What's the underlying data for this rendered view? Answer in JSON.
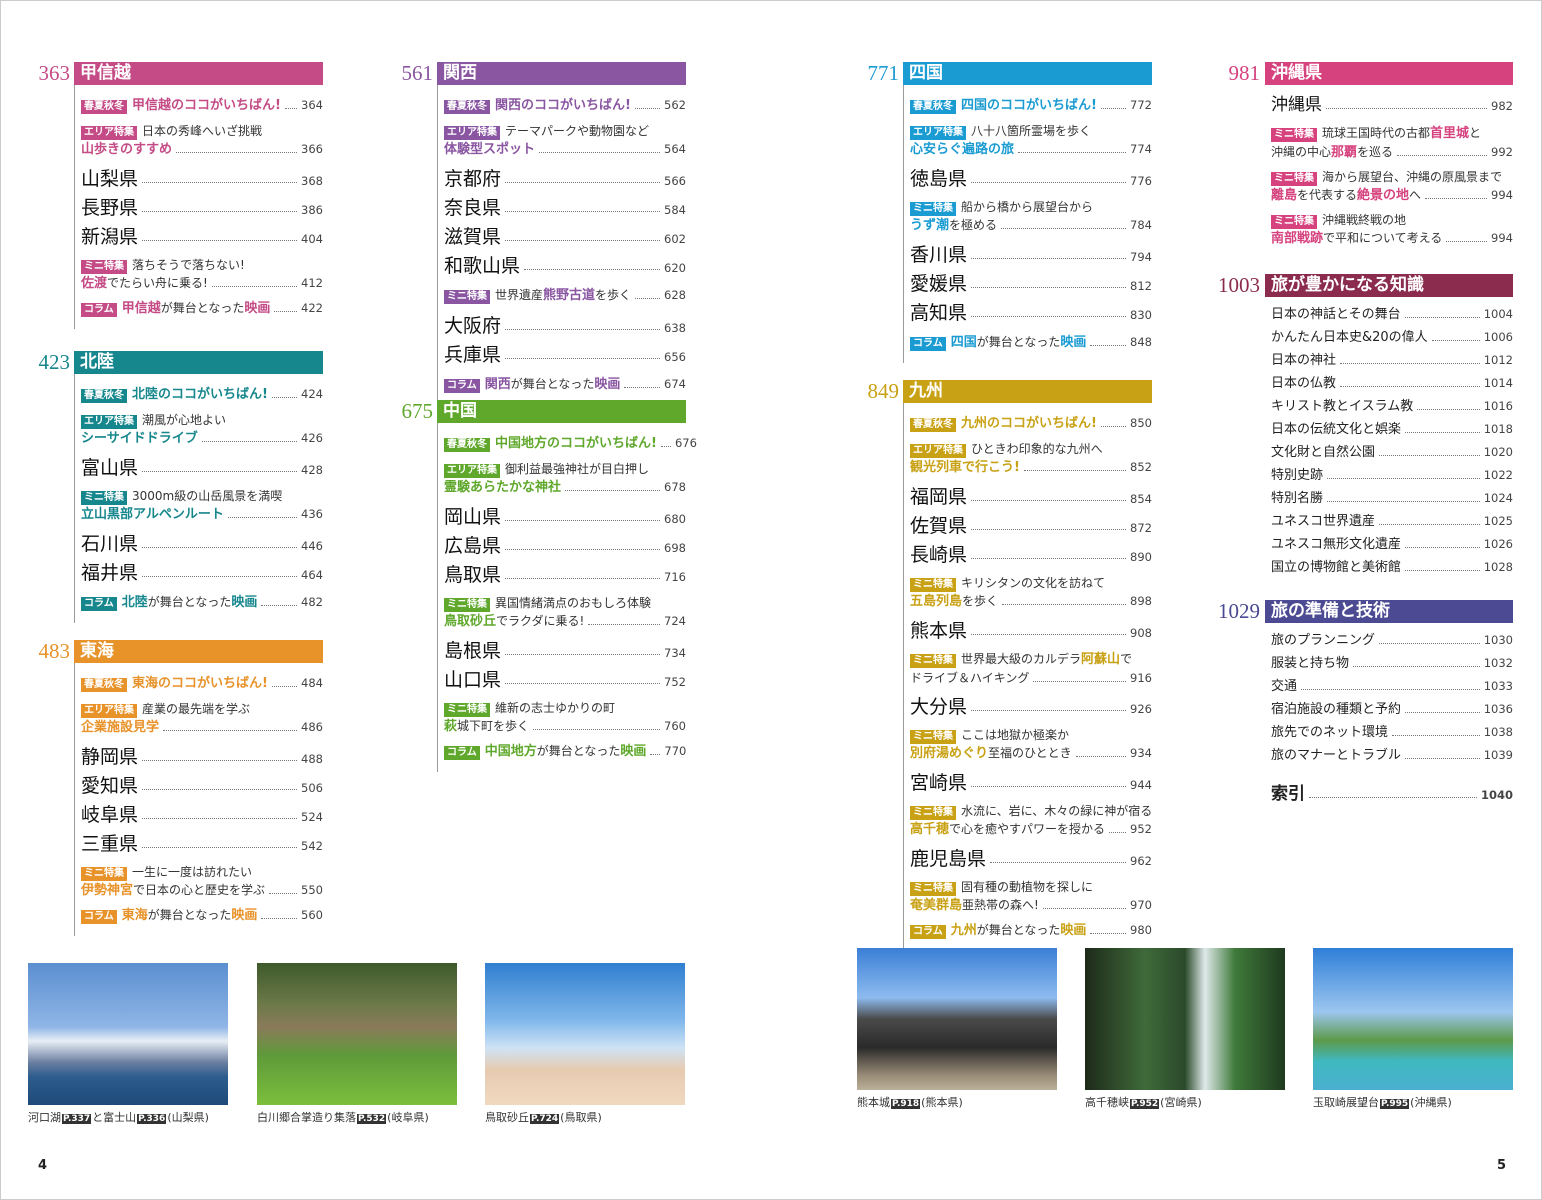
{
  "sections": [
    {
      "num": "363",
      "title": "甲信越",
      "color": "#c44b85",
      "items": [
        {
          "type": "feature",
          "tag": "春夏秋冬",
          "text": [
            {
              "t": "甲信越のココがいちばん!",
              "h": true
            }
          ],
          "page": "364"
        },
        {
          "type": "two",
          "tag": "エリア特集",
          "line1": [
            {
              "t": "日本の秀峰へいざ挑戦"
            }
          ],
          "line2": [
            {
              "t": "山歩きのすすめ",
              "h": true
            }
          ],
          "page": "366"
        },
        {
          "type": "pref",
          "name": "山梨県",
          "page": "368"
        },
        {
          "type": "pref",
          "name": "長野県",
          "page": "386"
        },
        {
          "type": "pref",
          "name": "新潟県",
          "page": "404"
        },
        {
          "type": "two",
          "tag": "ミニ特集",
          "line1": [
            {
              "t": "落ちそうで落ちない!"
            }
          ],
          "line2": [
            {
              "t": "佐渡",
              "h": true
            },
            {
              "t": "でたらい舟に乗る!"
            }
          ],
          "page": "412"
        },
        {
          "type": "feature",
          "tag": "コラム",
          "text": [
            {
              "t": "甲信越",
              "h": true
            },
            {
              "t": "が舞台となった"
            },
            {
              "t": "映画",
              "h": true
            }
          ],
          "page": "422"
        }
      ]
    },
    {
      "num": "423",
      "title": "北陸",
      "color": "#16878d",
      "items": [
        {
          "type": "feature",
          "tag": "春夏秋冬",
          "text": [
            {
              "t": "北陸のココがいちばん!",
              "h": true
            }
          ],
          "page": "424"
        },
        {
          "type": "two",
          "tag": "エリア特集",
          "line1": [
            {
              "t": "潮風が心地よい"
            }
          ],
          "line2": [
            {
              "t": "シーサイドドライブ",
              "h": true
            }
          ],
          "page": "426"
        },
        {
          "type": "pref",
          "name": "富山県",
          "page": "428"
        },
        {
          "type": "two",
          "tag": "ミニ特集",
          "line1": [
            {
              "t": "3000m級の山岳風景を満喫"
            }
          ],
          "line2": [
            {
              "t": "立山黒部アルペンルート",
              "h": true
            }
          ],
          "page": "436"
        },
        {
          "type": "pref",
          "name": "石川県",
          "page": "446"
        },
        {
          "type": "pref",
          "name": "福井県",
          "page": "464"
        },
        {
          "type": "feature",
          "tag": "コラム",
          "text": [
            {
              "t": "北陸",
              "h": true
            },
            {
              "t": "が舞台となった"
            },
            {
              "t": "映画",
              "h": true
            }
          ],
          "page": "482"
        }
      ]
    },
    {
      "num": "483",
      "title": "東海",
      "color": "#e8922a",
      "items": [
        {
          "type": "feature",
          "tag": "春夏秋冬",
          "text": [
            {
              "t": "東海のココがいちばん!",
              "h": true
            }
          ],
          "page": "484"
        },
        {
          "type": "two",
          "tag": "エリア特集",
          "line1": [
            {
              "t": "産業の最先端を学ぶ"
            }
          ],
          "line2": [
            {
              "t": "企業施設見学",
              "h": true
            }
          ],
          "page": "486"
        },
        {
          "type": "pref",
          "name": "静岡県",
          "page": "488"
        },
        {
          "type": "pref",
          "name": "愛知県",
          "page": "506"
        },
        {
          "type": "pref",
          "name": "岐阜県",
          "page": "524"
        },
        {
          "type": "pref",
          "name": "三重県",
          "page": "542"
        },
        {
          "type": "two",
          "tag": "ミニ特集",
          "line1": [
            {
              "t": "一生に一度は訪れたい"
            }
          ],
          "line2": [
            {
              "t": "伊勢神宮",
              "h": true
            },
            {
              "t": "で日本の心と歴史を学ぶ"
            }
          ],
          "page": "550"
        },
        {
          "type": "feature",
          "tag": "コラム",
          "text": [
            {
              "t": "東海",
              "h": true
            },
            {
              "t": "が舞台となった"
            },
            {
              "t": "映画",
              "h": true
            }
          ],
          "page": "560"
        }
      ]
    },
    {
      "num": "561",
      "title": "関西",
      "color": "#8a56a2",
      "items": [
        {
          "type": "feature",
          "tag": "春夏秋冬",
          "text": [
            {
              "t": "関西のココがいちばん!",
              "h": true
            }
          ],
          "page": "562"
        },
        {
          "type": "two",
          "tag": "エリア特集",
          "line1": [
            {
              "t": "テーマパークや動物園など"
            }
          ],
          "line2": [
            {
              "t": "体験型スポット",
              "h": true
            }
          ],
          "page": "564"
        },
        {
          "type": "pref",
          "name": "京都府",
          "page": "566"
        },
        {
          "type": "pref",
          "name": "奈良県",
          "page": "584"
        },
        {
          "type": "pref",
          "name": "滋賀県",
          "page": "602"
        },
        {
          "type": "pref",
          "name": "和歌山県",
          "page": "620"
        },
        {
          "type": "feature",
          "tag": "ミニ特集",
          "text": [
            {
              "t": "世界遺産"
            },
            {
              "t": "熊野古道",
              "h": true
            },
            {
              "t": "を歩く"
            }
          ],
          "page": "628"
        },
        {
          "type": "pref",
          "name": "大阪府",
          "page": "638"
        },
        {
          "type": "pref",
          "name": "兵庫県",
          "page": "656"
        },
        {
          "type": "feature",
          "tag": "コラム",
          "text": [
            {
              "t": "関西",
              "h": true
            },
            {
              "t": "が舞台となった"
            },
            {
              "t": "映画",
              "h": true
            }
          ],
          "page": "674"
        }
      ]
    },
    {
      "num": "675",
      "title": "中国",
      "color": "#5fa82c",
      "items": [
        {
          "type": "feature",
          "tag": "春夏秋冬",
          "text": [
            {
              "t": "中国地方のココがいちばん!",
              "h": true
            }
          ],
          "page": "676"
        },
        {
          "type": "two",
          "tag": "エリア特集",
          "line1": [
            {
              "t": "御利益最強神社が目白押し"
            }
          ],
          "line2": [
            {
              "t": "霊験あらたかな神社",
              "h": true
            }
          ],
          "page": "678"
        },
        {
          "type": "pref",
          "name": "岡山県",
          "page": "680"
        },
        {
          "type": "pref",
          "name": "広島県",
          "page": "698"
        },
        {
          "type": "pref",
          "name": "鳥取県",
          "page": "716"
        },
        {
          "type": "two",
          "tag": "ミニ特集",
          "line1": [
            {
              "t": "異国情緒満点のおもしろ体験"
            }
          ],
          "line2": [
            {
              "t": "鳥取砂丘",
              "h": true
            },
            {
              "t": "でラクダに乗る!"
            }
          ],
          "page": "724"
        },
        {
          "type": "pref",
          "name": "島根県",
          "page": "734"
        },
        {
          "type": "pref",
          "name": "山口県",
          "page": "752"
        },
        {
          "type": "two",
          "tag": "ミニ特集",
          "line1": [
            {
              "t": "維新の志士ゆかりの町"
            }
          ],
          "line2": [
            {
              "t": "萩",
              "h": true
            },
            {
              "t": "城下町を歩く"
            }
          ],
          "page": "760"
        },
        {
          "type": "feature",
          "tag": "コラム",
          "text": [
            {
              "t": "中国地方",
              "h": true
            },
            {
              "t": "が舞台となった"
            },
            {
              "t": "映画",
              "h": true
            }
          ],
          "page": "770"
        }
      ]
    },
    {
      "num": "771",
      "title": "四国",
      "color": "#1a9bd2",
      "items": [
        {
          "type": "feature",
          "tag": "春夏秋冬",
          "text": [
            {
              "t": "四国のココがいちばん!",
              "h": true
            }
          ],
          "page": "772"
        },
        {
          "type": "two",
          "tag": "エリア特集",
          "line1": [
            {
              "t": "八十八箇所霊場を歩く"
            }
          ],
          "line2": [
            {
              "t": "心安らぐ遍路の旅",
              "h": true
            }
          ],
          "page": "774"
        },
        {
          "type": "pref",
          "name": "徳島県",
          "page": "776"
        },
        {
          "type": "two",
          "tag": "ミニ特集",
          "line1": [
            {
              "t": "船から橋から展望台から"
            }
          ],
          "line2": [
            {
              "t": "うず潮",
              "h": true
            },
            {
              "t": "を極める"
            }
          ],
          "page": "784"
        },
        {
          "type": "pref",
          "name": "香川県",
          "page": "794"
        },
        {
          "type": "pref",
          "name": "愛媛県",
          "page": "812"
        },
        {
          "type": "pref",
          "name": "高知県",
          "page": "830"
        },
        {
          "type": "feature",
          "tag": "コラム",
          "text": [
            {
              "t": "四国",
              "h": true
            },
            {
              "t": "が舞台となった"
            },
            {
              "t": "映画",
              "h": true
            }
          ],
          "page": "848"
        }
      ]
    },
    {
      "num": "849",
      "title": "九州",
      "color": "#c9a114",
      "items": [
        {
          "type": "feature",
          "tag": "春夏秋冬",
          "text": [
            {
              "t": "九州のココがいちばん!",
              "h": true
            }
          ],
          "page": "850"
        },
        {
          "type": "two",
          "tag": "エリア特集",
          "line1": [
            {
              "t": "ひときわ印象的な九州へ"
            }
          ],
          "line2": [
            {
              "t": "観光列車で行こう!",
              "h": true
            }
          ],
          "page": "852"
        },
        {
          "type": "pref",
          "name": "福岡県",
          "page": "854"
        },
        {
          "type": "pref",
          "name": "佐賀県",
          "page": "872"
        },
        {
          "type": "pref",
          "name": "長崎県",
          "page": "890"
        },
        {
          "type": "two",
          "tag": "ミニ特集",
          "line1": [
            {
              "t": "キリシタンの文化を訪ねて"
            }
          ],
          "line2": [
            {
              "t": "五島列島",
              "h": true
            },
            {
              "t": "を歩く"
            }
          ],
          "page": "898"
        },
        {
          "type": "pref",
          "name": "熊本県",
          "page": "908"
        },
        {
          "type": "two",
          "tag": "ミニ特集",
          "line1": [
            {
              "t": "世界最大級のカルデラ "
            },
            {
              "t": "阿蘇山",
              "h": true
            },
            {
              "t": "で"
            }
          ],
          "line2": [
            {
              "t": "ドライブ＆ハイキング"
            }
          ],
          "page": "916"
        },
        {
          "type": "pref",
          "name": "大分県",
          "page": "926"
        },
        {
          "type": "two",
          "tag": "ミニ特集",
          "line1": [
            {
              "t": "ここは地獄か極楽か"
            }
          ],
          "line2": [
            {
              "t": "別府湯めぐり",
              "h": true
            },
            {
              "t": " 至福のひととき"
            }
          ],
          "page": "934"
        },
        {
          "type": "pref",
          "name": "宮崎県",
          "page": "944"
        },
        {
          "type": "two",
          "tag": "ミニ特集",
          "line1": [
            {
              "t": "水流に、岩に、木々の緑に神が宿る"
            }
          ],
          "line2": [
            {
              "t": "高千穂",
              "h": true
            },
            {
              "t": "で心を癒やすパワーを授かる"
            }
          ],
          "page": "952"
        },
        {
          "type": "pref",
          "name": "鹿児島県",
          "page": "962"
        },
        {
          "type": "two",
          "tag": "ミニ特集",
          "line1": [
            {
              "t": "固有種の動植物を探しに"
            }
          ],
          "line2": [
            {
              "t": "奄美群島",
              "h": true
            },
            {
              "t": " 亜熱帯の森へ!"
            }
          ],
          "page": "970"
        },
        {
          "type": "feature",
          "tag": "コラム",
          "text": [
            {
              "t": "九州",
              "h": true
            },
            {
              "t": "が舞台となった"
            },
            {
              "t": "映画",
              "h": true
            }
          ],
          "page": "980"
        }
      ]
    },
    {
      "num": "981",
      "title": "沖縄県",
      "color": "#d6427e",
      "items": [
        {
          "type": "pref",
          "name": "沖縄県",
          "page": "982"
        },
        {
          "type": "two",
          "tag": "ミニ特集",
          "line1": [
            {
              "t": "琉球王国時代の古都 "
            },
            {
              "t": "首里城",
              "h": true
            },
            {
              "t": "と"
            }
          ],
          "line2": [
            {
              "t": "沖縄の中心 "
            },
            {
              "t": "那覇",
              "h": true
            },
            {
              "t": "を巡る"
            }
          ],
          "page": "992"
        },
        {
          "type": "two",
          "tag": "ミニ特集",
          "line1": [
            {
              "t": "海から展望台、沖縄の原風景まで"
            }
          ],
          "line2": [
            {
              "t": "離島",
              "h": true
            },
            {
              "t": "を代表する"
            },
            {
              "t": "絶景の地",
              "h": true
            },
            {
              "t": "へ"
            }
          ],
          "page": "994"
        },
        {
          "type": "two",
          "tag": "ミニ特集",
          "line1": [
            {
              "t": "沖縄戦終戦の地"
            }
          ],
          "line2": [
            {
              "t": "南部戦跡",
              "h": true
            },
            {
              "t": "で平和について考える"
            }
          ],
          "page": "994"
        }
      ]
    },
    {
      "num": "1003",
      "title": "旅が豊かになる知識",
      "color": "#8b2c4e",
      "items": [
        {
          "type": "list",
          "name": "日本の神話とその舞台",
          "page": "1004"
        },
        {
          "type": "list",
          "name": "かんたん日本史&20の偉人",
          "page": "1006"
        },
        {
          "type": "list",
          "name": "日本の神社",
          "page": "1012"
        },
        {
          "type": "list",
          "name": "日本の仏教",
          "page": "1014"
        },
        {
          "type": "list",
          "name": "キリスト教とイスラム教",
          "page": "1016"
        },
        {
          "type": "list",
          "name": "日本の伝統文化と娯楽",
          "page": "1018"
        },
        {
          "type": "list",
          "name": "文化財と自然公園",
          "page": "1020"
        },
        {
          "type": "list",
          "name": "特別史跡",
          "page": "1022"
        },
        {
          "type": "list",
          "name": "特別名勝",
          "page": "1024"
        },
        {
          "type": "list",
          "name": "ユネスコ世界遺産",
          "page": "1025"
        },
        {
          "type": "list",
          "name": "ユネスコ無形文化遺産",
          "page": "1026"
        },
        {
          "type": "list",
          "name": "国立の博物館と美術館",
          "page": "1028"
        }
      ]
    },
    {
      "num": "1029",
      "title": "旅の準備と技術",
      "color": "#4b4a92",
      "items": [
        {
          "type": "list",
          "name": "旅のプランニング",
          "page": "1030"
        },
        {
          "type": "list",
          "name": "服装と持ち物",
          "page": "1032"
        },
        {
          "type": "list",
          "name": "交通",
          "page": "1033"
        },
        {
          "type": "list",
          "name": "宿泊施設の種類と予約",
          "page": "1036"
        },
        {
          "type": "list",
          "name": "旅先でのネット環境",
          "page": "1038"
        },
        {
          "type": "list",
          "name": "旅のマナーとトラブル",
          "page": "1039"
        },
        {
          "type": "index",
          "name": "索引",
          "page": "1040"
        }
      ]
    }
  ],
  "photos": [
    {
      "caption": [
        {
          "t": "河口湖"
        },
        {
          "p": "P.337"
        },
        {
          "t": "と富士山"
        },
        {
          "p": "P.336"
        },
        {
          "t": "(山梨県)"
        }
      ]
    },
    {
      "caption": [
        {
          "t": "白川郷合掌造り集落"
        },
        {
          "p": "P.532"
        },
        {
          "t": "(岐阜県)"
        }
      ]
    },
    {
      "caption": [
        {
          "t": "鳥取砂丘"
        },
        {
          "p": "P.724"
        },
        {
          "t": "(鳥取県)"
        }
      ]
    },
    {
      "caption": [
        {
          "t": "熊本城"
        },
        {
          "p": "P.918"
        },
        {
          "t": "(熊本県)"
        }
      ]
    },
    {
      "caption": [
        {
          "t": "高千穂峡"
        },
        {
          "p": "P.952"
        },
        {
          "t": "(宮崎県)"
        }
      ]
    },
    {
      "caption": [
        {
          "t": "玉取崎展望台"
        },
        {
          "p": "P.995"
        },
        {
          "t": "(沖縄県)"
        }
      ]
    }
  ],
  "folio": {
    "left": "4",
    "right": "5"
  }
}
